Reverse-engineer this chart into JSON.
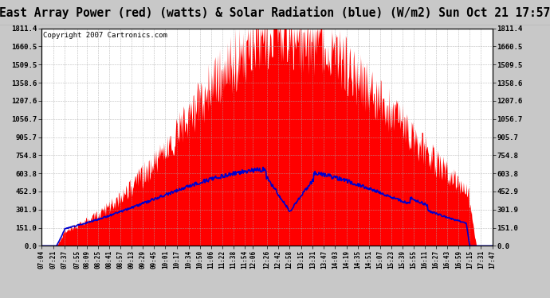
{
  "title": "East Array Power (red) (watts) & Solar Radiation (blue) (W/m2) Sun Oct 21 17:57",
  "copyright": "Copyright 2007 Cartronics.com",
  "ymax": 1811.4,
  "ymin": 0.0,
  "yticks": [
    0.0,
    151.0,
    301.9,
    452.9,
    603.8,
    754.8,
    905.7,
    1056.7,
    1207.6,
    1358.6,
    1509.5,
    1660.5,
    1811.4
  ],
  "xtick_labels": [
    "07:04",
    "07:21",
    "07:37",
    "07:55",
    "08:09",
    "08:25",
    "08:41",
    "08:57",
    "09:13",
    "09:29",
    "09:45",
    "10:01",
    "10:17",
    "10:34",
    "10:50",
    "11:06",
    "11:22",
    "11:38",
    "11:54",
    "12:06",
    "12:26",
    "12:42",
    "12:58",
    "13:15",
    "13:31",
    "13:47",
    "14:03",
    "14:19",
    "14:35",
    "14:51",
    "15:07",
    "15:23",
    "15:39",
    "15:55",
    "16:11",
    "16:27",
    "16:43",
    "16:59",
    "17:15",
    "17:31",
    "17:47"
  ],
  "bg_color": "#c8c8c8",
  "plot_bg_color": "#ffffff",
  "red_color": "#ff0000",
  "blue_color": "#0000cc",
  "grid_color": "#aaaaaa",
  "title_bg_color": "#ffffff",
  "title_font_size": 10.5,
  "copyright_font_size": 6.5
}
